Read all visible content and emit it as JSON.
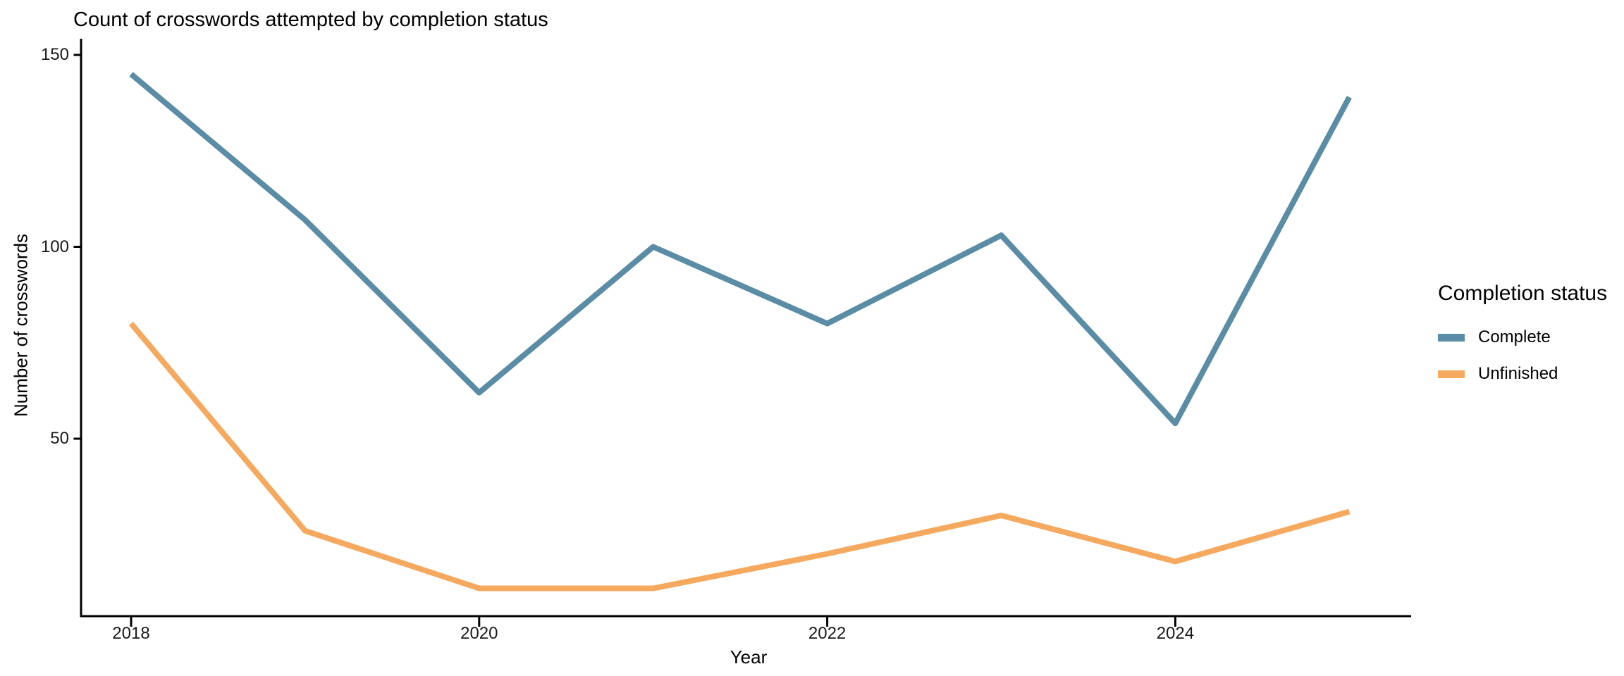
{
  "title": "Count of crosswords attempted by completion status",
  "axes": {
    "x": {
      "label": "Year",
      "ticks": [
        "2018",
        "2020",
        "2022",
        "2024"
      ],
      "tick_values": [
        2018,
        2020,
        2022,
        2024
      ]
    },
    "y": {
      "label": "Number of crosswords",
      "ticks": [
        "50",
        "100",
        "150"
      ],
      "tick_values": [
        50,
        100,
        150
      ]
    }
  },
  "legend": {
    "title": "Completion status",
    "entries": [
      {
        "label": "Complete",
        "color": "#5A8CA5"
      },
      {
        "label": "Unfinished",
        "color": "#F5A95F"
      }
    ]
  },
  "chart_data": {
    "type": "line",
    "title": "Count of crosswords attempted by completion status",
    "xlabel": "Year",
    "ylabel": "Number of crosswords",
    "legend_title": "Completion status",
    "legend_position": "right",
    "grid": false,
    "x": [
      2018,
      2019,
      2020,
      2021,
      2022,
      2023,
      2024,
      2025
    ],
    "xlim": [
      2017.65,
      2025.35
    ],
    "ylim": [
      4,
      155
    ],
    "series": [
      {
        "name": "Complete",
        "color": "#5A8CA5",
        "values": [
          145,
          107,
          62,
          100,
          80,
          103,
          54,
          139
        ]
      },
      {
        "name": "Unfinished",
        "color": "#F5A95F",
        "values": [
          80,
          26,
          11,
          11,
          20,
          30,
          18,
          31
        ]
      }
    ]
  }
}
